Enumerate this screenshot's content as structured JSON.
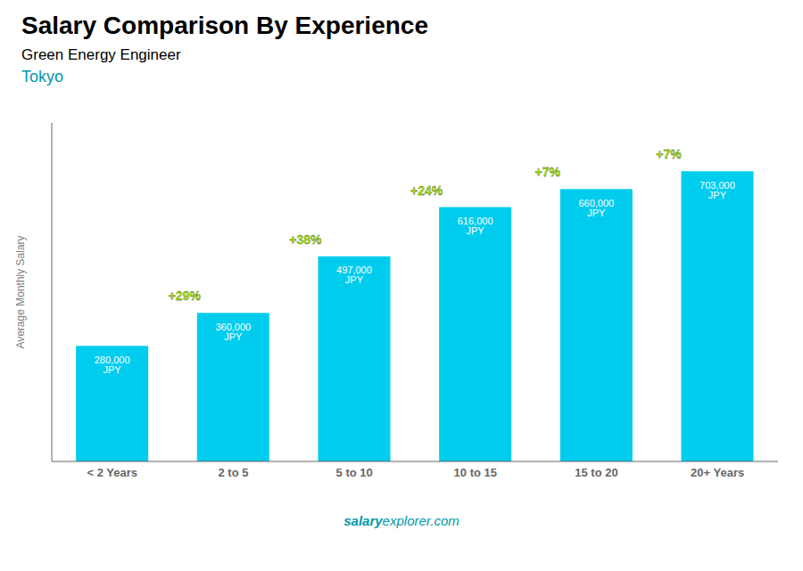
{
  "chart_data": {
    "type": "bar",
    "title": "Salary Comparison By Experience",
    "subtitle": "Green Energy Engineer",
    "city": "Tokyo",
    "categories": [
      "< 2 Years",
      "2 to 5",
      "5 to 10",
      "10 to 15",
      "15 to 20",
      "20+ Years"
    ],
    "values": [
      280000,
      360000,
      497000,
      616000,
      660000,
      703000
    ],
    "value_labels": [
      "280,000 JPY",
      "360,000 JPY",
      "497,000 JPY",
      "616,000 JPY",
      "660,000 JPY",
      "703,000 JPY"
    ],
    "data_labels": true,
    "annotations": [
      "+29%",
      "+38%",
      "+24%",
      "+7%",
      "+7%"
    ],
    "annotation_color": "#aaee00",
    "ylabel": "Average Monthly Salary",
    "watermark": [
      "salary",
      "explorer.com"
    ],
    "color": "#00ccee",
    "ylim": [
      0,
      820000
    ],
    "yticks": [],
    "tick_labels": "x",
    "grid": false
  }
}
